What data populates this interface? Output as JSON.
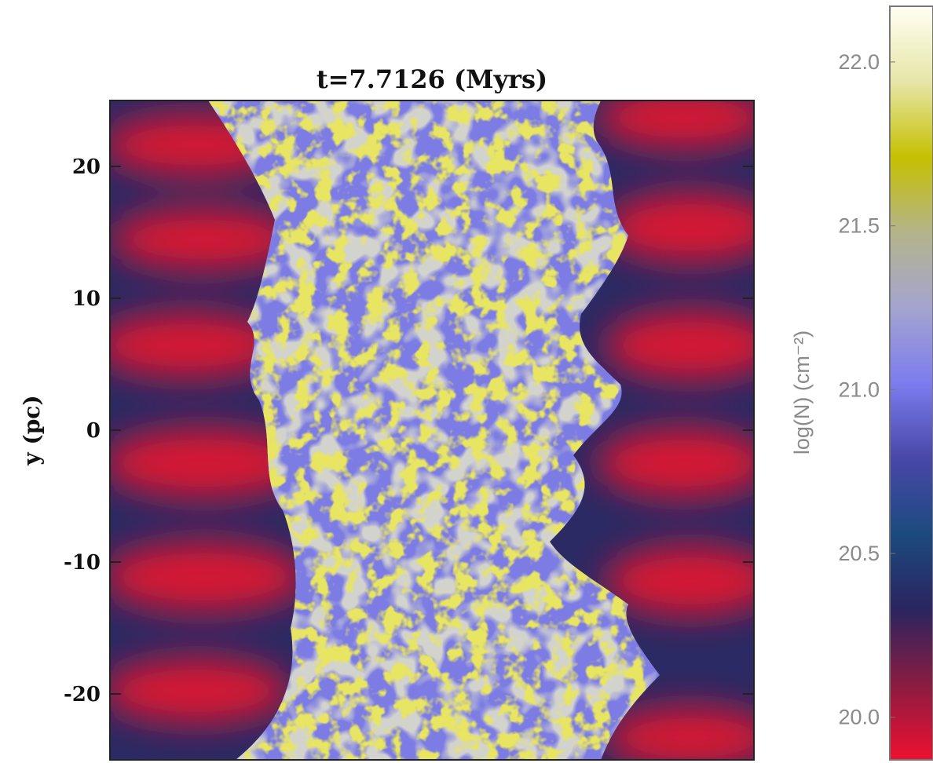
{
  "chart_data": {
    "type": "image",
    "title": "t=7.7126 (Myrs)",
    "y_label": "y (pc)",
    "ylim": [
      -25,
      25
    ],
    "yticks": [
      20,
      10,
      0,
      -10,
      -20
    ],
    "colorbar_label": "log(N) (cm⁻²)",
    "clim": [
      19.87,
      22.17
    ],
    "cticks": [
      {
        "value": 20,
        "label": "20.0"
      },
      {
        "value": 20.5,
        "label": "20.5"
      },
      {
        "value": 21,
        "label": "21.0"
      },
      {
        "value": 21.5,
        "label": "21.5"
      },
      {
        "value": 22,
        "label": "22.0"
      }
    ],
    "colormap": [
      "#ee1030",
      "#8a1c42",
      "#2a2560",
      "#1c4a7e",
      "#4848a8",
      "#7c7cee",
      "#a4a4d0",
      "#b4b48a",
      "#c6c000",
      "#e6e6a8",
      "#fffff4"
    ]
  }
}
